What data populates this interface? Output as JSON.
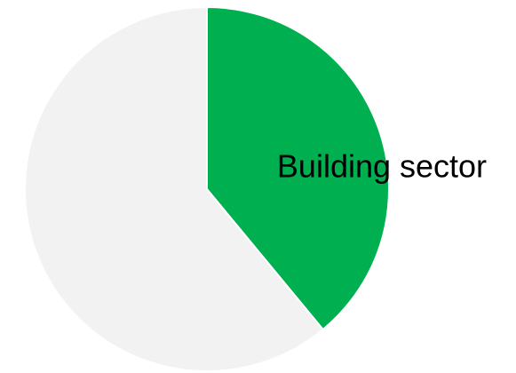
{
  "chart_data": {
    "type": "pie",
    "slices": [
      {
        "label": "Building sector",
        "value": 39,
        "color": "#00b050",
        "show_label": true
      },
      {
        "label": "",
        "value": 61,
        "color": "#f2f2f2",
        "show_label": false
      }
    ],
    "start_angle_deg": 0,
    "direction": "clockwise",
    "legend": "none"
  }
}
